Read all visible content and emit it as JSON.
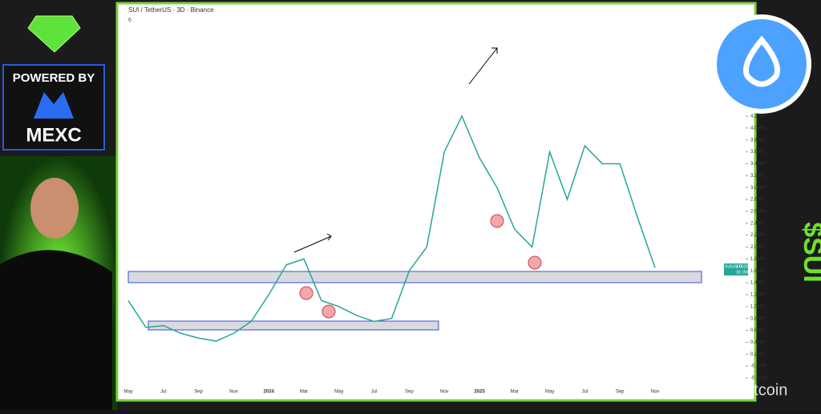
{
  "header": {
    "brand": "POWERED BY",
    "exchange": "MEXC",
    "ticker_tag": "$SUI",
    "watermark": "@ CaptainAltcoin"
  },
  "chart_data": {
    "type": "line",
    "title": "SUI / TetherUS · 3D · Binance",
    "subtitle": "6",
    "categories": [
      "May",
      null,
      "Jul",
      null,
      "Sep",
      null,
      "Nov",
      null,
      "2024",
      null,
      "Mar",
      null,
      "May",
      null,
      "Jul",
      null,
      "Sep",
      null,
      "Nov",
      null,
      "2025",
      null,
      "Mar",
      null,
      "May",
      null,
      "Jul",
      null,
      "Sep",
      null,
      "Nov"
    ],
    "series": [
      {
        "name": "SUI/USDT",
        "color": "#26a69a",
        "values": [
          1.1,
          0.65,
          0.68,
          0.55,
          0.47,
          0.42,
          0.55,
          0.75,
          1.2,
          1.7,
          1.8,
          1.1,
          1.0,
          0.85,
          0.75,
          0.8,
          1.6,
          2.0,
          3.6,
          4.2,
          3.5,
          3.0,
          2.3,
          2.0,
          3.6,
          2.8,
          3.7,
          3.4,
          3.4,
          2.5,
          1.652
        ]
      }
    ],
    "last_price": {
      "symbol": "SUIUSDT",
      "label": "1.6520",
      "countdown": "2d 15h"
    },
    "ylim": [
      -0.2,
      4.4
    ],
    "yticks": [
      {
        "value": -0.2,
        "label": "-0.2000"
      },
      {
        "value": 0,
        "label": "-0.0000"
      },
      {
        "value": 0.2,
        "label": "0.2000"
      },
      {
        "value": 0.4,
        "label": "0.4000"
      },
      {
        "value": 0.6,
        "label": "0.6000"
      },
      {
        "value": 0.8,
        "label": "0.8000"
      },
      {
        "value": 1.0,
        "label": "1.0000"
      },
      {
        "value": 1.2,
        "label": "1.2000"
      },
      {
        "value": 1.4,
        "label": "1.4000"
      },
      {
        "value": 1.6,
        "label": "1.6000"
      },
      {
        "value": 1.8,
        "label": "1.8000"
      },
      {
        "value": 2.0,
        "label": "2.0000"
      },
      {
        "value": 2.2,
        "label": "2.2000"
      },
      {
        "value": 2.4,
        "label": "2.4000"
      },
      {
        "value": 2.6,
        "label": "2.6000"
      },
      {
        "value": 2.8,
        "label": "2.8000"
      },
      {
        "value": 3.0,
        "label": "3.0000"
      },
      {
        "value": 3.2,
        "label": "3.2000"
      },
      {
        "value": 3.4,
        "label": "3.4000"
      },
      {
        "value": 3.6,
        "label": "3.6000"
      },
      {
        "value": 3.8,
        "label": "3.8000"
      },
      {
        "value": 4.0,
        "label": "4.0000"
      },
      {
        "value": 4.2,
        "label": "4.2000"
      }
    ],
    "grid": false
  }
}
